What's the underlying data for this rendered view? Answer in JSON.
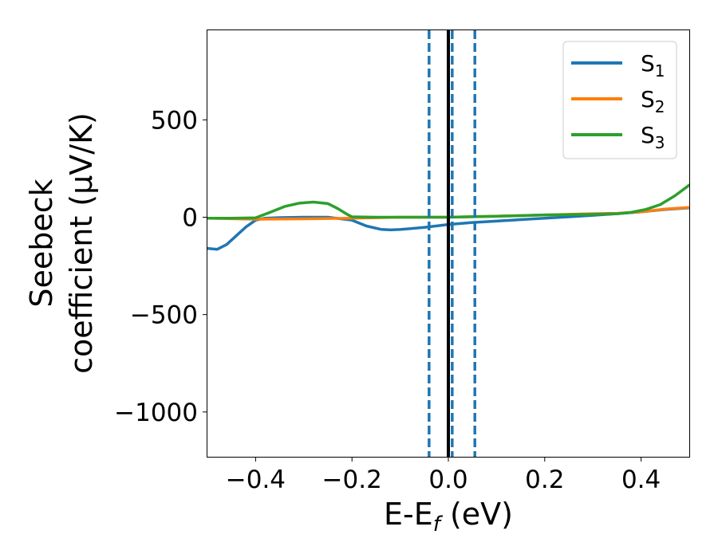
{
  "chart_data": {
    "type": "line",
    "title": "",
    "xlabel": "E-E_f (eV)",
    "ylabel_line1": "Seebeck",
    "ylabel_line2": "coefficient  (μV/K)",
    "xlim": [
      -0.5,
      0.5
    ],
    "ylim": [
      -1230,
      960
    ],
    "xticks": [
      -0.4,
      -0.2,
      0.0,
      0.2,
      0.4
    ],
    "xtick_labels": [
      "−0.4",
      "−0.2",
      "0.0",
      "0.2",
      "0.4"
    ],
    "yticks": [
      500,
      0,
      -500,
      -1000
    ],
    "ytick_labels": [
      "500",
      "0",
      "−500",
      "−1000"
    ],
    "grid": false,
    "legend_position": "top-right",
    "series": [
      {
        "name": "S1",
        "color": "#1f77b4",
        "points": [
          [
            -0.5,
            -160
          ],
          [
            -0.48,
            -165
          ],
          [
            -0.46,
            -140
          ],
          [
            -0.44,
            -95
          ],
          [
            -0.42,
            -50
          ],
          [
            -0.4,
            -15
          ],
          [
            -0.38,
            -5
          ],
          [
            -0.35,
            -2
          ],
          [
            -0.3,
            0
          ],
          [
            -0.25,
            0
          ],
          [
            -0.2,
            -15
          ],
          [
            -0.17,
            -45
          ],
          [
            -0.14,
            -62
          ],
          [
            -0.12,
            -65
          ],
          [
            -0.1,
            -63
          ],
          [
            -0.05,
            -52
          ],
          [
            0.0,
            -37
          ],
          [
            0.05,
            -27
          ],
          [
            0.1,
            -20
          ],
          [
            0.15,
            -12
          ],
          [
            0.2,
            -5
          ],
          [
            0.25,
            2
          ],
          [
            0.3,
            10
          ],
          [
            0.35,
            18
          ],
          [
            0.4,
            28
          ],
          [
            0.45,
            40
          ],
          [
            0.5,
            48
          ]
        ]
      },
      {
        "name": "S2",
        "color": "#ff7f0e",
        "points": [
          [
            -0.5,
            -5
          ],
          [
            -0.4,
            -10
          ],
          [
            -0.3,
            -8
          ],
          [
            -0.2,
            -5
          ],
          [
            -0.1,
            0
          ],
          [
            0.0,
            0
          ],
          [
            0.1,
            5
          ],
          [
            0.2,
            12
          ],
          [
            0.3,
            18
          ],
          [
            0.35,
            20
          ],
          [
            0.4,
            28
          ],
          [
            0.45,
            42
          ],
          [
            0.5,
            50
          ]
        ]
      },
      {
        "name": "S3",
        "color": "#2ca02c",
        "points": [
          [
            -0.5,
            -5
          ],
          [
            -0.45,
            -5
          ],
          [
            -0.4,
            -3
          ],
          [
            -0.37,
            25
          ],
          [
            -0.34,
            55
          ],
          [
            -0.31,
            72
          ],
          [
            -0.28,
            78
          ],
          [
            -0.25,
            70
          ],
          [
            -0.23,
            45
          ],
          [
            -0.21,
            15
          ],
          [
            -0.2,
            2
          ],
          [
            -0.15,
            0
          ],
          [
            -0.1,
            0
          ],
          [
            0.0,
            0
          ],
          [
            0.1,
            5
          ],
          [
            0.2,
            12
          ],
          [
            0.3,
            15
          ],
          [
            0.35,
            18
          ],
          [
            0.38,
            25
          ],
          [
            0.41,
            40
          ],
          [
            0.44,
            65
          ],
          [
            0.47,
            110
          ],
          [
            0.5,
            165
          ]
        ]
      }
    ],
    "vlines": [
      {
        "x": 0.0,
        "style": "solid",
        "color": "#000000"
      },
      {
        "x": -0.04,
        "style": "dashed",
        "color": "#1f77b4"
      },
      {
        "x": 0.008,
        "style": "dashed",
        "color": "#1f77b4"
      },
      {
        "x": 0.055,
        "style": "dashed",
        "color": "#1f77b4"
      }
    ]
  }
}
